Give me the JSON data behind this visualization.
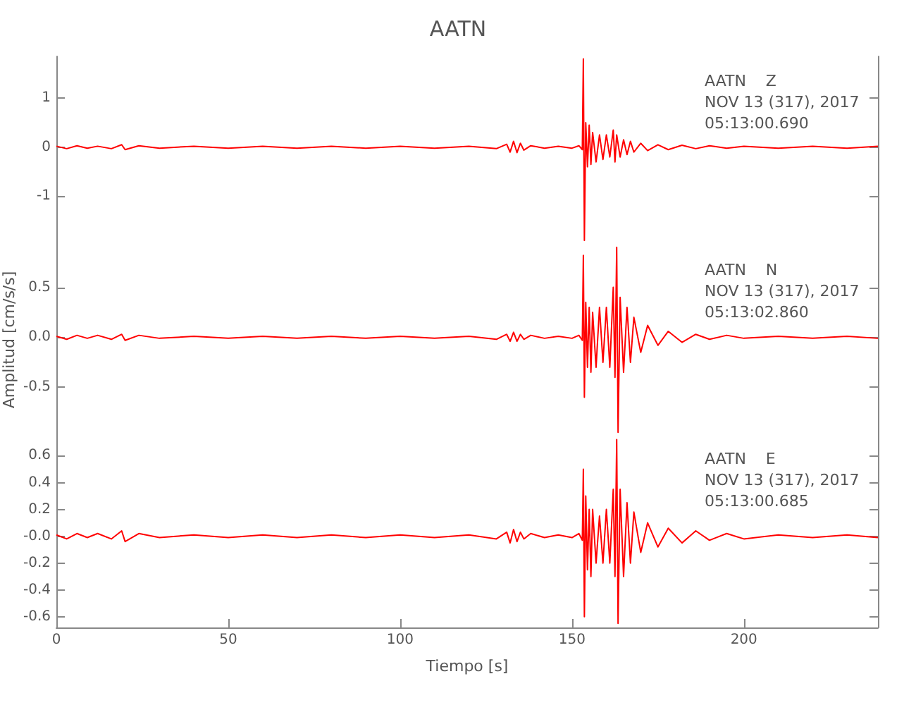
{
  "chart_data": [
    {
      "type": "line",
      "title": "AATN",
      "annotations": [
        "AATN    Z",
        "NOV 13 (317), 2017",
        "05:13:00.690"
      ],
      "x": [
        0,
        3,
        6,
        9,
        12,
        16,
        19,
        20,
        24,
        30,
        40,
        50,
        60,
        70,
        80,
        90,
        100,
        110,
        120,
        128,
        131,
        132,
        133,
        134,
        135,
        136,
        138,
        142,
        146,
        150,
        152,
        153,
        153.3,
        153.6,
        154,
        154.5,
        155,
        155.5,
        156,
        157,
        158,
        159,
        160,
        161,
        162,
        162.5,
        163,
        164,
        165,
        166,
        167,
        168,
        170,
        172,
        175,
        178,
        182,
        186,
        190,
        195,
        200,
        210,
        220,
        230,
        239
      ],
      "series": [
        {
          "color": "#ff0000",
          "values": [
            0.02,
            -0.03,
            0.03,
            -0.02,
            0.02,
            -0.03,
            0.05,
            -0.05,
            0.03,
            -0.02,
            0.02,
            -0.02,
            0.02,
            -0.02,
            0.02,
            -0.02,
            0.02,
            -0.02,
            0.02,
            -0.03,
            0.06,
            -0.1,
            0.12,
            -0.11,
            0.08,
            -0.06,
            0.03,
            -0.02,
            0.02,
            -0.02,
            0.03,
            -0.05,
            1.8,
            -1.9,
            0.5,
            -0.4,
            0.45,
            -0.35,
            0.3,
            -0.3,
            0.25,
            -0.25,
            0.25,
            -0.2,
            0.35,
            -0.3,
            0.25,
            -0.2,
            0.15,
            -0.15,
            0.12,
            -0.1,
            0.08,
            -0.07,
            0.05,
            -0.05,
            0.04,
            -0.03,
            0.03,
            -0.02,
            0.02,
            -0.02,
            0.02,
            -0.02,
            0.02
          ]
        }
      ],
      "xlim": [
        0,
        239
      ],
      "ylim": [
        -2,
        1.85
      ],
      "yticks": [
        -1,
        0,
        1
      ],
      "tick_labels": "y",
      "grid": false,
      "marker": "none",
      "line_style": "solid"
    },
    {
      "type": "line",
      "ylabel": "Amplitud [cm/s/s]",
      "annotations": [
        "AATN    N",
        "NOV 13 (317), 2017",
        "05:13:02.860"
      ],
      "x": [
        0,
        3,
        6,
        9,
        12,
        16,
        19,
        20,
        24,
        30,
        40,
        50,
        60,
        70,
        80,
        90,
        100,
        110,
        120,
        128,
        131,
        132,
        133,
        134,
        135,
        136,
        138,
        142,
        146,
        150,
        152,
        153,
        153.3,
        153.6,
        154,
        154.5,
        155,
        155.5,
        156,
        157,
        158,
        159,
        160,
        161,
        162,
        162.5,
        163,
        163.4,
        164,
        165,
        166,
        167,
        168,
        170,
        172,
        175,
        178,
        182,
        186,
        190,
        195,
        200,
        210,
        220,
        230,
        239
      ],
      "series": [
        {
          "color": "#ff0000",
          "values": [
            0.01,
            -0.02,
            0.02,
            -0.01,
            0.02,
            -0.02,
            0.03,
            -0.03,
            0.02,
            -0.01,
            0.01,
            -0.01,
            0.01,
            -0.01,
            0.01,
            -0.01,
            0.01,
            -0.01,
            0.01,
            -0.02,
            0.03,
            -0.04,
            0.05,
            -0.04,
            0.03,
            -0.02,
            0.02,
            -0.01,
            0.01,
            -0.01,
            0.02,
            -0.03,
            0.82,
            -0.6,
            0.35,
            -0.3,
            0.3,
            -0.35,
            0.25,
            -0.3,
            0.3,
            -0.25,
            0.3,
            -0.3,
            0.5,
            -0.4,
            0.9,
            -0.95,
            0.4,
            -0.35,
            0.3,
            -0.25,
            0.2,
            -0.15,
            0.12,
            -0.08,
            0.06,
            -0.05,
            0.03,
            -0.02,
            0.02,
            -0.01,
            0.01,
            -0.01,
            0.01,
            -0.01
          ]
        }
      ],
      "xlim": [
        0,
        239
      ],
      "ylim": [
        -0.97,
        0.92
      ],
      "yticks": [
        -0.5,
        {
          "value": 0,
          "label": "0.0"
        },
        0.5
      ],
      "tick_labels": "y",
      "grid": false,
      "marker": "none",
      "line_style": "solid"
    },
    {
      "type": "line",
      "xlabel": "Tiempo [s]",
      "annotations": [
        "AATN    E",
        "NOV 13 (317), 2017",
        "05:13:00.685"
      ],
      "x": [
        0,
        3,
        6,
        9,
        12,
        16,
        19,
        20,
        24,
        30,
        40,
        50,
        60,
        70,
        80,
        90,
        100,
        110,
        120,
        128,
        131,
        132,
        133,
        134,
        135,
        136,
        138,
        142,
        146,
        150,
        152,
        153,
        153.3,
        153.6,
        154,
        154.5,
        155,
        155.5,
        156,
        157,
        158,
        159,
        160,
        161,
        162,
        162.5,
        163,
        163.4,
        164,
        165,
        166,
        167,
        168,
        170,
        172,
        175,
        178,
        182,
        186,
        190,
        195,
        200,
        210,
        220,
        230,
        239
      ],
      "series": [
        {
          "color": "#ff0000",
          "values": [
            0.01,
            -0.02,
            0.02,
            -0.01,
            0.02,
            -0.02,
            0.04,
            -0.04,
            0.02,
            -0.01,
            0.01,
            -0.01,
            0.01,
            -0.01,
            0.01,
            -0.01,
            0.01,
            -0.01,
            0.01,
            -0.02,
            0.03,
            -0.05,
            0.05,
            -0.04,
            0.03,
            -0.02,
            0.02,
            -0.01,
            0.01,
            -0.01,
            0.02,
            -0.03,
            0.5,
            -0.6,
            0.3,
            -0.25,
            0.2,
            -0.3,
            0.2,
            -0.2,
            0.15,
            -0.2,
            0.2,
            -0.2,
            0.35,
            -0.3,
            0.72,
            -0.65,
            0.35,
            -0.3,
            0.25,
            -0.2,
            0.18,
            -0.12,
            0.1,
            -0.08,
            0.06,
            -0.05,
            0.04,
            -0.03,
            0.02,
            -0.02,
            0.01,
            -0.01,
            0.01,
            -0.01
          ]
        }
      ],
      "xlim": [
        0,
        239
      ],
      "xticks": [
        0,
        50,
        100,
        150,
        200
      ],
      "ylim": [
        -0.68,
        0.76
      ],
      "yticks": [
        -0.6,
        -0.4,
        -0.2,
        {
          "value": 0,
          "label": "-0.0"
        },
        0.2,
        0.4,
        0.6
      ],
      "grid": false,
      "marker": "none",
      "line_style": "solid"
    }
  ]
}
